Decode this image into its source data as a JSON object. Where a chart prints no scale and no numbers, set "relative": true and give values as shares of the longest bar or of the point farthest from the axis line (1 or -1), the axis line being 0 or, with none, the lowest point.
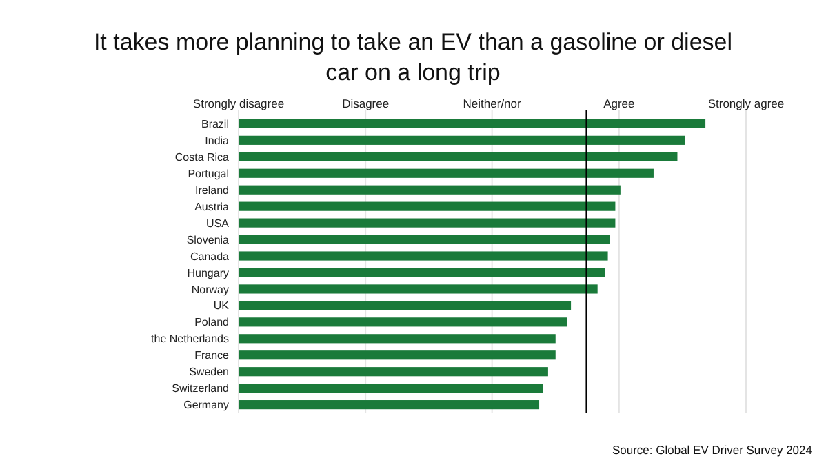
{
  "chart_data": {
    "type": "bar",
    "orientation": "horizontal",
    "relative": true,
    "title": "It takes more planning to take an EV than a gasoline or diesel car on a long trip",
    "categories": [
      "Brazil",
      "India",
      "Costa Rica",
      "Portugal",
      "Ireland",
      "Austria",
      "USA",
      "Slovenia",
      "Canada",
      "Hungary",
      "Norway",
      "UK",
      "Poland",
      "the Netherlands",
      "France",
      "Sweden",
      "Switzerland",
      "Germany"
    ],
    "values": [
      1,
      0.957,
      0.94,
      0.889,
      0.818,
      0.807,
      0.807,
      0.796,
      0.791,
      0.785,
      0.769,
      0.712,
      0.704,
      0.679,
      0.679,
      0.663,
      0.652,
      0.644
    ],
    "color": "#1a7a3a",
    "ref_lines": [
      {
        "axis": "x",
        "value": 0,
        "label": "Strongly disagree",
        "color": "#e4e4e4"
      },
      {
        "axis": "x",
        "value": 0.272,
        "label": "Disagree",
        "color": "#e4e4e4"
      },
      {
        "axis": "x",
        "value": 0.543,
        "label": "Neither/nor",
        "color": "#e4e4e4"
      },
      {
        "axis": "x",
        "value": 0.815,
        "label": "Agree",
        "color": "#e4e4e4"
      },
      {
        "axis": "x",
        "value": 1.087,
        "label": "Strongly agree",
        "color": "#e4e4e4"
      },
      {
        "axis": "x",
        "value": 0.745,
        "color": "#000000"
      }
    ],
    "annotations": [
      "Source: Global EV Driver Survey 2024"
    ]
  }
}
